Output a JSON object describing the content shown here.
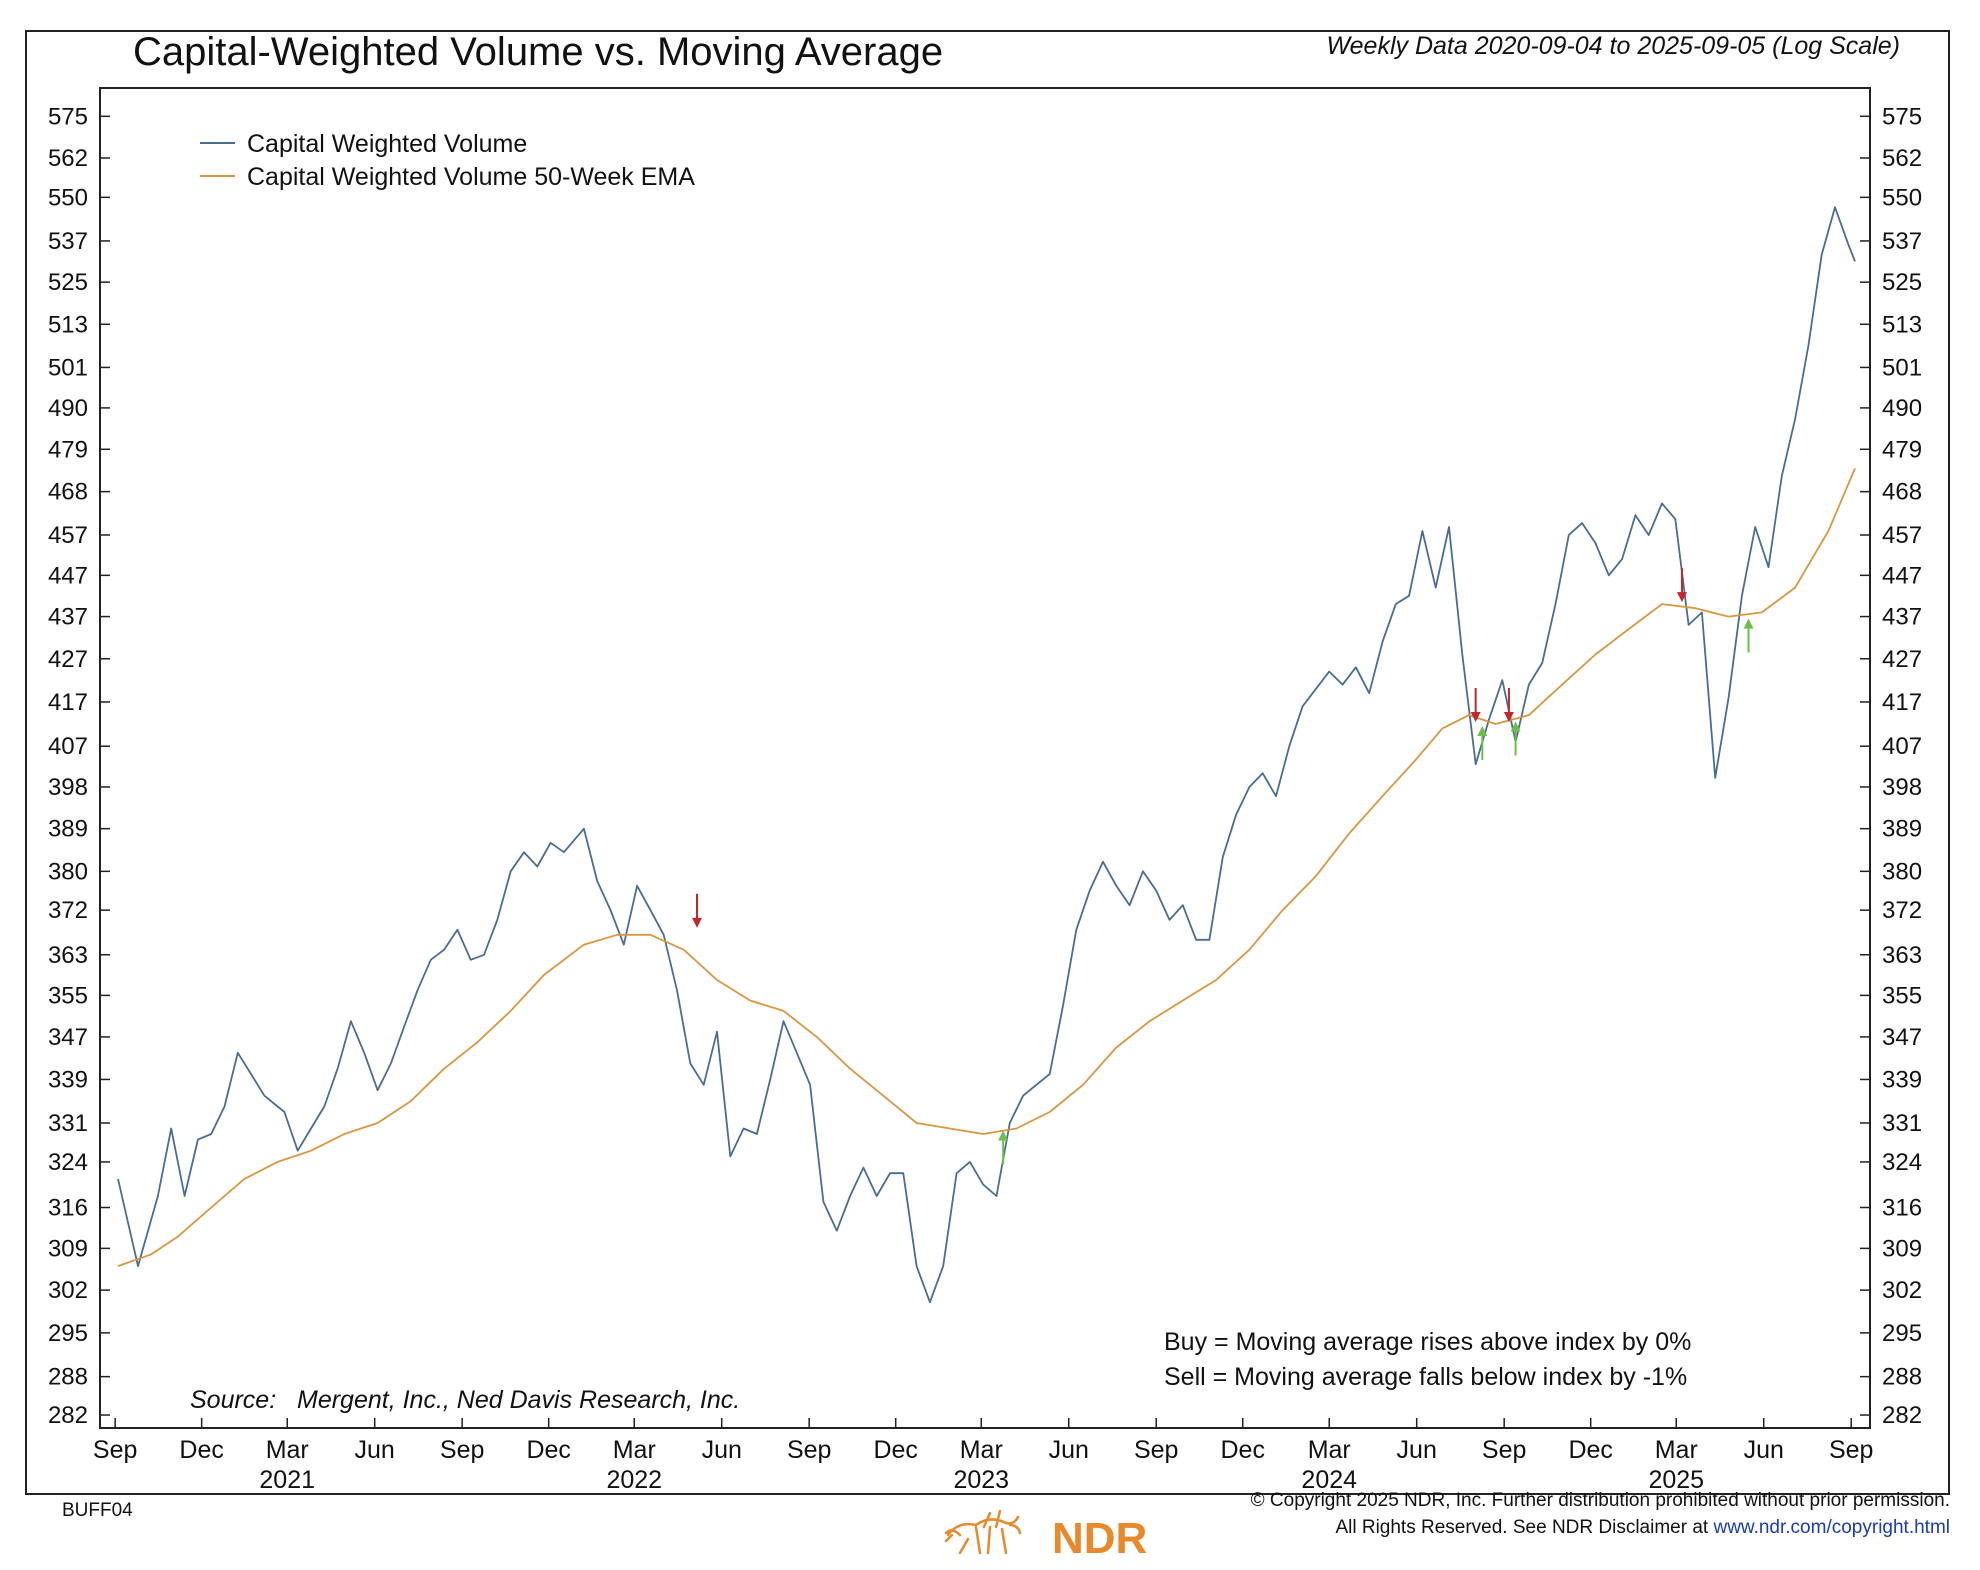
{
  "header": {
    "title": "Capital-Weighted Volume vs. Moving Average",
    "subtitle": "Weekly Data 2020-09-04 to 2025-09-05 (Log Scale)"
  },
  "legend": {
    "items": [
      {
        "label": "Capital Weighted Volume",
        "color": "#4a6c93"
      },
      {
        "label": "Capital Weighted Volume 50-Week EMA",
        "color": "#d9973f"
      }
    ]
  },
  "notes": {
    "buy": "Buy = Moving average rises above index by 0%",
    "sell": "Sell = Moving average falls below index by -1%",
    "source": "Source:   Mergent, Inc., Ned Davis Research, Inc."
  },
  "footer": {
    "code": "BUFF04",
    "copyright_line1": "© Copyright 2025 NDR, Inc. Further distribution prohibited without prior permission.",
    "copyright_line2_prefix": "All Rights Reserved. See NDR Disclaimer at ",
    "copyright_url": "www.ndr.com/copyright.html",
    "logo_text": "NDR"
  },
  "colors": {
    "series": "#4a6c93",
    "ema": "#d9973f",
    "buy_arrow": "#6cc04a",
    "sell_arrow": "#c0272d"
  },
  "chart_data": {
    "type": "line",
    "title": "Capital-Weighted Volume vs. Moving Average",
    "y_scale": "log",
    "ylim": [
      280,
      584
    ],
    "y_ticks": [
      "575",
      "562",
      "550",
      "537",
      "525",
      "513",
      "501",
      "490",
      "479",
      "468",
      "457",
      "447",
      "437",
      "427",
      "417",
      "407",
      "398",
      "389",
      "380",
      "372",
      "363",
      "355",
      "347",
      "339",
      "331",
      "324",
      "316",
      "309",
      "302",
      "295",
      "288",
      "282"
    ],
    "x_range": [
      "2020-09-04",
      "2025-09-05"
    ],
    "x_ticks": [
      {
        "date": "2020-09-01",
        "label": "Sep",
        "year": ""
      },
      {
        "date": "2020-12-01",
        "label": "Dec",
        "year": ""
      },
      {
        "date": "2021-03-01",
        "label": "Mar",
        "year": "2021"
      },
      {
        "date": "2021-06-01",
        "label": "Jun",
        "year": ""
      },
      {
        "date": "2021-09-01",
        "label": "Sep",
        "year": ""
      },
      {
        "date": "2021-12-01",
        "label": "Dec",
        "year": ""
      },
      {
        "date": "2022-03-01",
        "label": "Mar",
        "year": "2022"
      },
      {
        "date": "2022-06-01",
        "label": "Jun",
        "year": ""
      },
      {
        "date": "2022-09-01",
        "label": "Sep",
        "year": ""
      },
      {
        "date": "2022-12-01",
        "label": "Dec",
        "year": ""
      },
      {
        "date": "2023-03-01",
        "label": "Mar",
        "year": "2023"
      },
      {
        "date": "2023-06-01",
        "label": "Jun",
        "year": ""
      },
      {
        "date": "2023-09-01",
        "label": "Sep",
        "year": ""
      },
      {
        "date": "2023-12-01",
        "label": "Dec",
        "year": ""
      },
      {
        "date": "2024-03-01",
        "label": "Mar",
        "year": "2024"
      },
      {
        "date": "2024-06-01",
        "label": "Jun",
        "year": ""
      },
      {
        "date": "2024-09-01",
        "label": "Sep",
        "year": ""
      },
      {
        "date": "2024-12-01",
        "label": "Dec",
        "year": ""
      },
      {
        "date": "2025-03-01",
        "label": "Mar",
        "year": "2025"
      },
      {
        "date": "2025-06-01",
        "label": "Jun",
        "year": ""
      },
      {
        "date": "2025-09-01",
        "label": "Sep",
        "year": ""
      }
    ],
    "series": [
      {
        "name": "Capital Weighted Volume",
        "points": [
          [
            "2020-09-04",
            321
          ],
          [
            "2020-09-25",
            306
          ],
          [
            "2020-10-16",
            318
          ],
          [
            "2020-10-30",
            330
          ],
          [
            "2020-11-13",
            318
          ],
          [
            "2020-11-27",
            328
          ],
          [
            "2020-12-11",
            329
          ],
          [
            "2020-12-25",
            334
          ],
          [
            "2021-01-08",
            344
          ],
          [
            "2021-01-22",
            340
          ],
          [
            "2021-02-05",
            336
          ],
          [
            "2021-02-26",
            333
          ],
          [
            "2021-03-12",
            326
          ],
          [
            "2021-03-26",
            330
          ],
          [
            "2021-04-09",
            334
          ],
          [
            "2021-04-23",
            341
          ],
          [
            "2021-05-07",
            350
          ],
          [
            "2021-05-21",
            344
          ],
          [
            "2021-06-04",
            337
          ],
          [
            "2021-06-18",
            342
          ],
          [
            "2021-07-02",
            349
          ],
          [
            "2021-07-16",
            356
          ],
          [
            "2021-07-30",
            362
          ],
          [
            "2021-08-13",
            364
          ],
          [
            "2021-08-27",
            368
          ],
          [
            "2021-09-10",
            362
          ],
          [
            "2021-09-24",
            363
          ],
          [
            "2021-10-08",
            370
          ],
          [
            "2021-10-22",
            380
          ],
          [
            "2021-11-05",
            384
          ],
          [
            "2021-11-19",
            381
          ],
          [
            "2021-12-03",
            386
          ],
          [
            "2021-12-17",
            384
          ],
          [
            "2022-01-07",
            389
          ],
          [
            "2022-01-21",
            378
          ],
          [
            "2022-02-04",
            372
          ],
          [
            "2022-02-18",
            365
          ],
          [
            "2022-03-04",
            377
          ],
          [
            "2022-03-18",
            372
          ],
          [
            "2022-04-01",
            367
          ],
          [
            "2022-04-15",
            356
          ],
          [
            "2022-04-29",
            342
          ],
          [
            "2022-05-13",
            338
          ],
          [
            "2022-05-27",
            348
          ],
          [
            "2022-06-10",
            325
          ],
          [
            "2022-06-24",
            330
          ],
          [
            "2022-07-08",
            329
          ],
          [
            "2022-07-22",
            339
          ],
          [
            "2022-08-05",
            350
          ],
          [
            "2022-08-19",
            344
          ],
          [
            "2022-09-02",
            338
          ],
          [
            "2022-09-16",
            317
          ],
          [
            "2022-09-30",
            312
          ],
          [
            "2022-10-14",
            318
          ],
          [
            "2022-10-28",
            323
          ],
          [
            "2022-11-11",
            318
          ],
          [
            "2022-11-25",
            322
          ],
          [
            "2022-12-09",
            322
          ],
          [
            "2022-12-23",
            306
          ],
          [
            "2023-01-06",
            300
          ],
          [
            "2023-01-20",
            306
          ],
          [
            "2023-02-03",
            322
          ],
          [
            "2023-02-17",
            324
          ],
          [
            "2023-03-03",
            320
          ],
          [
            "2023-03-17",
            318
          ],
          [
            "2023-03-31",
            331
          ],
          [
            "2023-04-14",
            336
          ],
          [
            "2023-04-28",
            338
          ],
          [
            "2023-05-12",
            340
          ],
          [
            "2023-05-26",
            353
          ],
          [
            "2023-06-09",
            368
          ],
          [
            "2023-06-23",
            376
          ],
          [
            "2023-07-07",
            382
          ],
          [
            "2023-07-21",
            377
          ],
          [
            "2023-08-04",
            373
          ],
          [
            "2023-08-18",
            380
          ],
          [
            "2023-09-01",
            376
          ],
          [
            "2023-09-15",
            370
          ],
          [
            "2023-09-29",
            373
          ],
          [
            "2023-10-13",
            366
          ],
          [
            "2023-10-27",
            366
          ],
          [
            "2023-11-10",
            383
          ],
          [
            "2023-11-24",
            392
          ],
          [
            "2023-12-08",
            398
          ],
          [
            "2023-12-22",
            401
          ],
          [
            "2024-01-05",
            396
          ],
          [
            "2024-01-19",
            407
          ],
          [
            "2024-02-02",
            416
          ],
          [
            "2024-02-16",
            420
          ],
          [
            "2024-03-01",
            424
          ],
          [
            "2024-03-15",
            421
          ],
          [
            "2024-03-29",
            425
          ],
          [
            "2024-04-12",
            419
          ],
          [
            "2024-04-26",
            431
          ],
          [
            "2024-05-10",
            440
          ],
          [
            "2024-05-24",
            442
          ],
          [
            "2024-06-07",
            458
          ],
          [
            "2024-06-21",
            444
          ],
          [
            "2024-07-05",
            459
          ],
          [
            "2024-07-19",
            428
          ],
          [
            "2024-08-02",
            403
          ],
          [
            "2024-08-16",
            413
          ],
          [
            "2024-08-30",
            422
          ],
          [
            "2024-09-13",
            408
          ],
          [
            "2024-09-27",
            421
          ],
          [
            "2024-10-11",
            426
          ],
          [
            "2024-10-25",
            440
          ],
          [
            "2024-11-08",
            457
          ],
          [
            "2024-11-22",
            460
          ],
          [
            "2024-12-06",
            455
          ],
          [
            "2024-12-20",
            447
          ],
          [
            "2025-01-03",
            451
          ],
          [
            "2025-01-17",
            462
          ],
          [
            "2025-01-31",
            457
          ],
          [
            "2025-02-14",
            465
          ],
          [
            "2025-02-28",
            461
          ],
          [
            "2025-03-14",
            435
          ],
          [
            "2025-03-28",
            438
          ],
          [
            "2025-04-11",
            400
          ],
          [
            "2025-04-25",
            418
          ],
          [
            "2025-05-09",
            442
          ],
          [
            "2025-05-23",
            459
          ],
          [
            "2025-06-06",
            449
          ],
          [
            "2025-06-20",
            472
          ],
          [
            "2025-07-04",
            487
          ],
          [
            "2025-07-18",
            507
          ],
          [
            "2025-08-01",
            533
          ],
          [
            "2025-08-15",
            547
          ],
          [
            "2025-08-29",
            536
          ],
          [
            "2025-09-05",
            531
          ]
        ]
      },
      {
        "name": "Capital Weighted Volume 50-Week EMA",
        "points": [
          [
            "2020-09-04",
            306
          ],
          [
            "2020-10-09",
            308
          ],
          [
            "2020-11-06",
            311
          ],
          [
            "2020-12-11",
            316
          ],
          [
            "2021-01-15",
            321
          ],
          [
            "2021-02-19",
            324
          ],
          [
            "2021-03-26",
            326
          ],
          [
            "2021-04-30",
            329
          ],
          [
            "2021-06-04",
            331
          ],
          [
            "2021-07-09",
            335
          ],
          [
            "2021-08-13",
            341
          ],
          [
            "2021-09-17",
            346
          ],
          [
            "2021-10-22",
            352
          ],
          [
            "2021-11-26",
            359
          ],
          [
            "2022-01-07",
            365
          ],
          [
            "2022-02-11",
            367
          ],
          [
            "2022-03-18",
            367
          ],
          [
            "2022-04-22",
            364
          ],
          [
            "2022-05-27",
            358
          ],
          [
            "2022-07-01",
            354
          ],
          [
            "2022-08-05",
            352
          ],
          [
            "2022-09-09",
            347
          ],
          [
            "2022-10-14",
            341
          ],
          [
            "2022-11-18",
            336
          ],
          [
            "2022-12-23",
            331
          ],
          [
            "2023-01-27",
            330
          ],
          [
            "2023-03-03",
            329
          ],
          [
            "2023-04-07",
            330
          ],
          [
            "2023-05-12",
            333
          ],
          [
            "2023-06-16",
            338
          ],
          [
            "2023-07-21",
            345
          ],
          [
            "2023-08-25",
            350
          ],
          [
            "2023-09-29",
            354
          ],
          [
            "2023-11-03",
            358
          ],
          [
            "2023-12-08",
            364
          ],
          [
            "2024-01-12",
            372
          ],
          [
            "2024-02-16",
            379
          ],
          [
            "2024-03-22",
            388
          ],
          [
            "2024-04-26",
            396
          ],
          [
            "2024-05-31",
            404
          ],
          [
            "2024-06-28",
            411
          ],
          [
            "2024-07-26",
            414
          ],
          [
            "2024-08-23",
            412
          ],
          [
            "2024-09-27",
            414
          ],
          [
            "2024-11-01",
            421
          ],
          [
            "2024-12-06",
            428
          ],
          [
            "2025-01-10",
            434
          ],
          [
            "2025-02-14",
            440
          ],
          [
            "2025-03-21",
            439
          ],
          [
            "2025-04-25",
            437
          ],
          [
            "2025-05-30",
            438
          ],
          [
            "2025-07-04",
            444
          ],
          [
            "2025-08-08",
            458
          ],
          [
            "2025-09-05",
            474
          ]
        ]
      }
    ],
    "signals": [
      {
        "date": "2022-05-06",
        "type": "sell",
        "value": 368
      },
      {
        "date": "2023-03-24",
        "type": "buy",
        "value": 330
      },
      {
        "date": "2024-08-02",
        "type": "sell",
        "value": 412
      },
      {
        "date": "2024-08-09",
        "type": "buy",
        "value": 412
      },
      {
        "date": "2024-09-06",
        "type": "sell",
        "value": 412
      },
      {
        "date": "2024-09-13",
        "type": "buy",
        "value": 413
      },
      {
        "date": "2025-03-07",
        "type": "sell",
        "value": 440
      },
      {
        "date": "2025-05-16",
        "type": "buy",
        "value": 437
      }
    ]
  }
}
